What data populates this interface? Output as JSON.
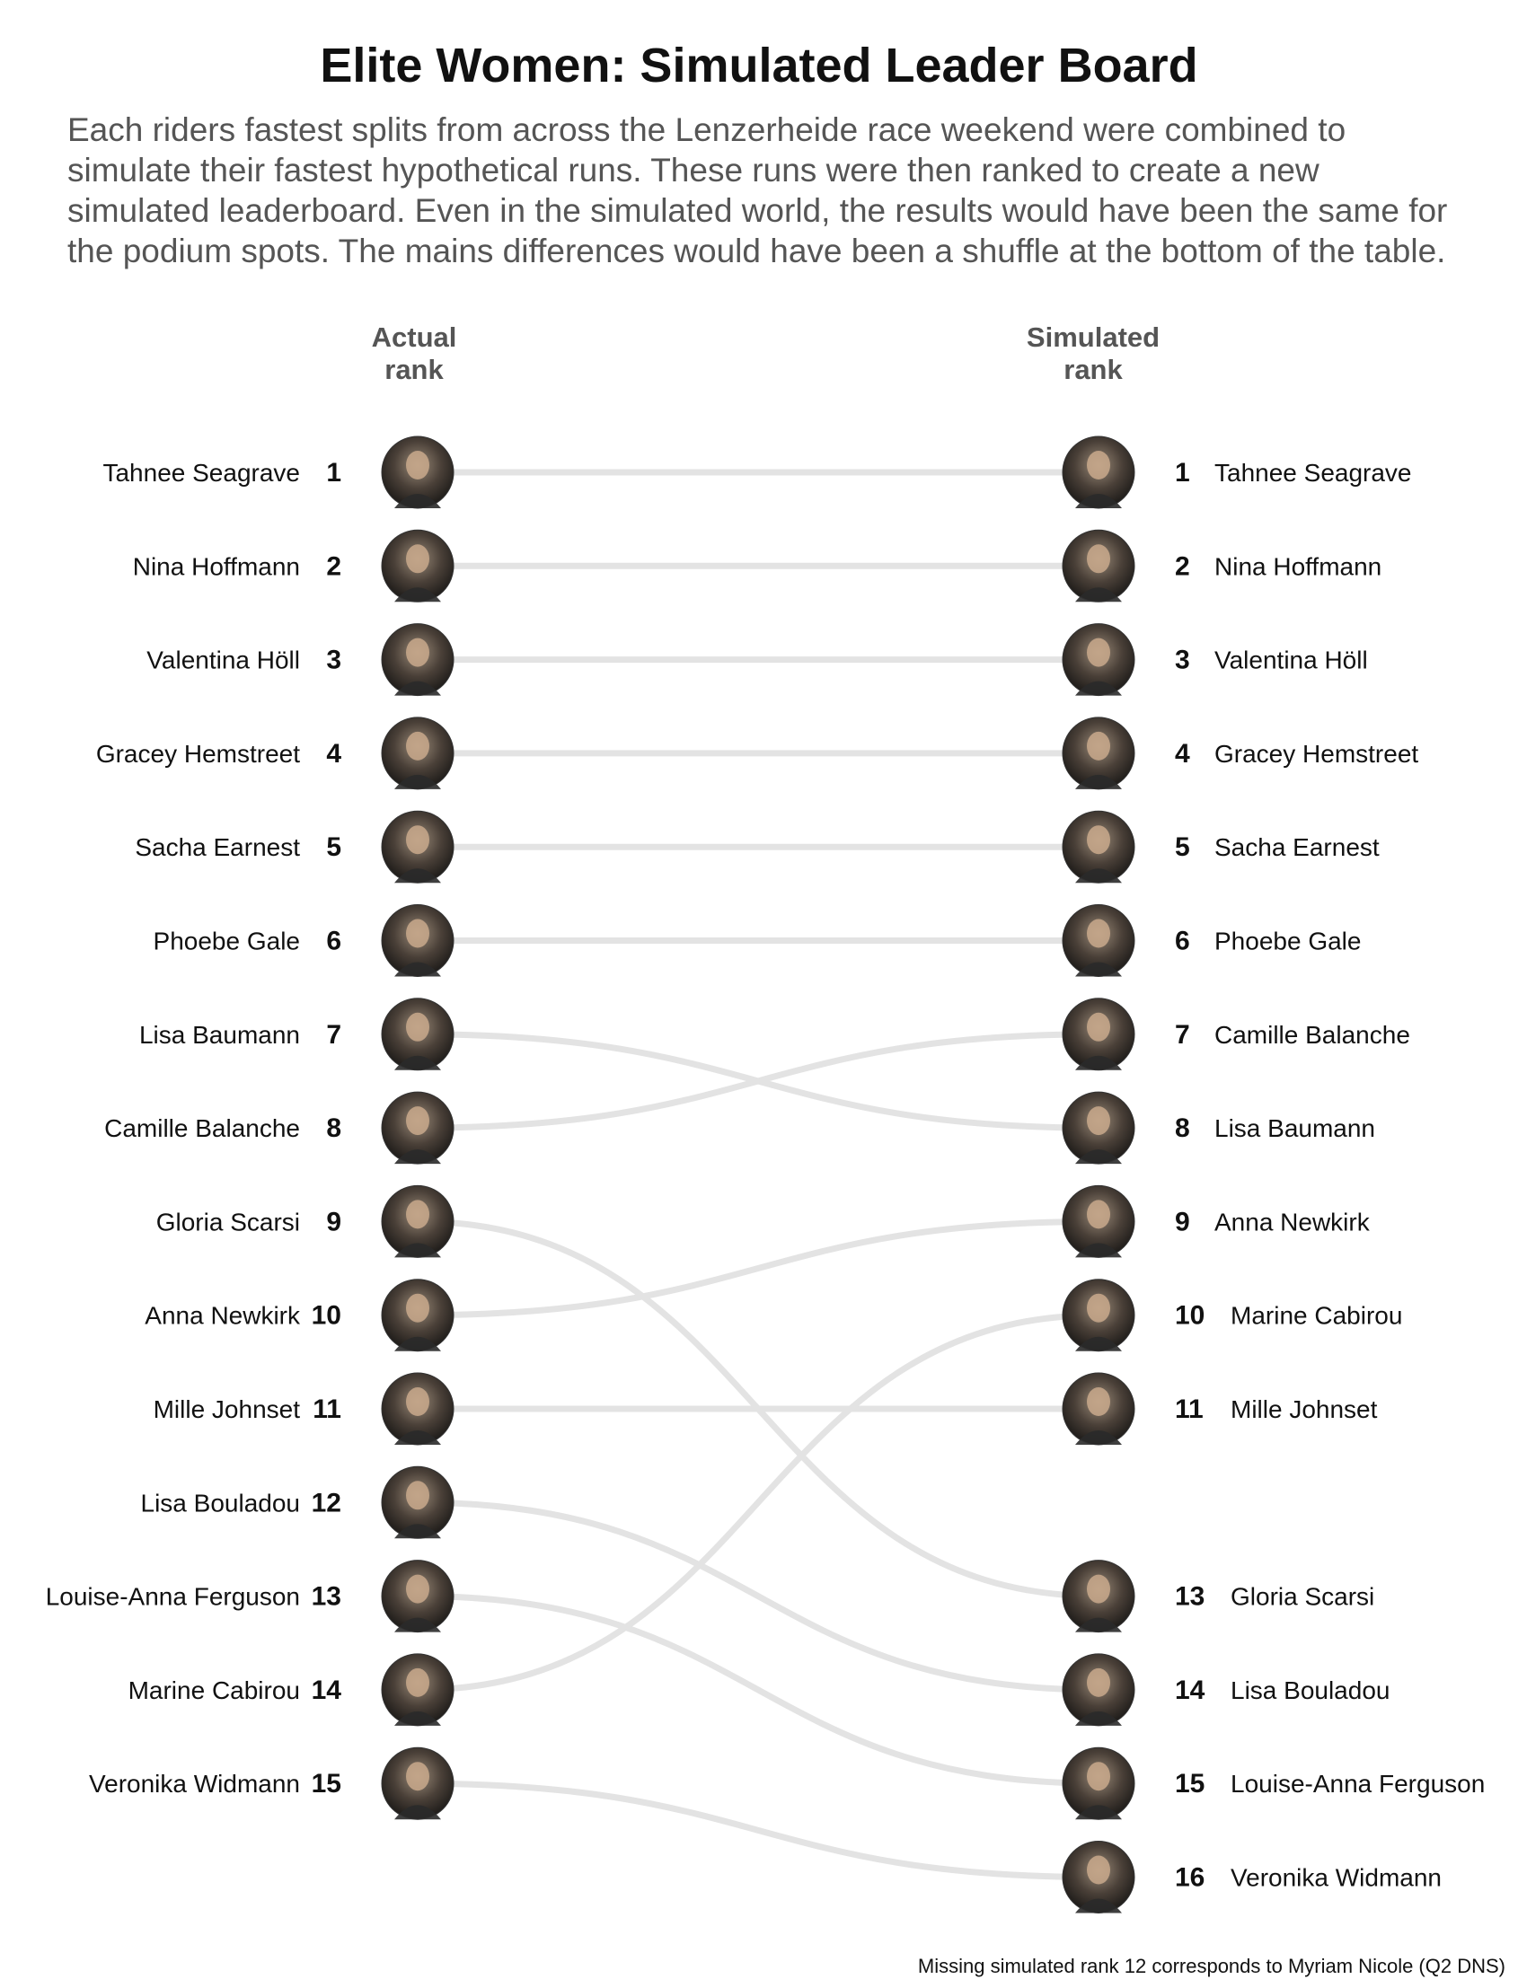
{
  "title": "Elite Women: Simulated Leader Board",
  "subtitle": "Each riders fastest splits from across the Lenzerheide race weekend were combined to simulate their fastest hypothetical runs. These runs were then ranked to create a new simulated leaderboard. Even in the simulated world, the results would have been the same for the podium spots. The mains differences would have been a shuffle at the bottom of the table.",
  "column_headers": {
    "actual": "Actual\nrank",
    "simulated": "Simulated\nrank"
  },
  "footnote": "Missing simulated rank 12 corresponds to Myriam Nicole (Q2 DNS)",
  "colors": {
    "connector": "#e3e3e3",
    "text": "#111111",
    "subtitle": "#555555"
  },
  "chart_data": {
    "type": "slope",
    "x": [
      "Actual rank",
      "Simulated rank"
    ],
    "series": [
      {
        "name": "Tahnee Seagrave",
        "values": [
          1,
          1
        ]
      },
      {
        "name": "Nina Hoffmann",
        "values": [
          2,
          2
        ]
      },
      {
        "name": "Valentina Höll",
        "values": [
          3,
          3
        ]
      },
      {
        "name": "Gracey Hemstreet",
        "values": [
          4,
          4
        ]
      },
      {
        "name": "Sacha Earnest",
        "values": [
          5,
          5
        ]
      },
      {
        "name": "Phoebe Gale",
        "values": [
          6,
          6
        ]
      },
      {
        "name": "Lisa Baumann",
        "values": [
          7,
          8
        ]
      },
      {
        "name": "Camille Balanche",
        "values": [
          8,
          7
        ]
      },
      {
        "name": "Gloria Scarsi",
        "values": [
          9,
          13
        ]
      },
      {
        "name": "Anna Newkirk",
        "values": [
          10,
          9
        ]
      },
      {
        "name": "Mille Johnset",
        "values": [
          11,
          11
        ]
      },
      {
        "name": "Lisa Bouladou",
        "values": [
          12,
          14
        ]
      },
      {
        "name": "Louise-Anna Ferguson",
        "values": [
          13,
          15
        ]
      },
      {
        "name": "Marine Cabirou",
        "values": [
          14,
          10
        ]
      },
      {
        "name": "Veronika Widmann",
        "values": [
          15,
          16
        ]
      }
    ],
    "ylim": [
      1,
      16
    ],
    "grid": false,
    "legend": "none"
  }
}
